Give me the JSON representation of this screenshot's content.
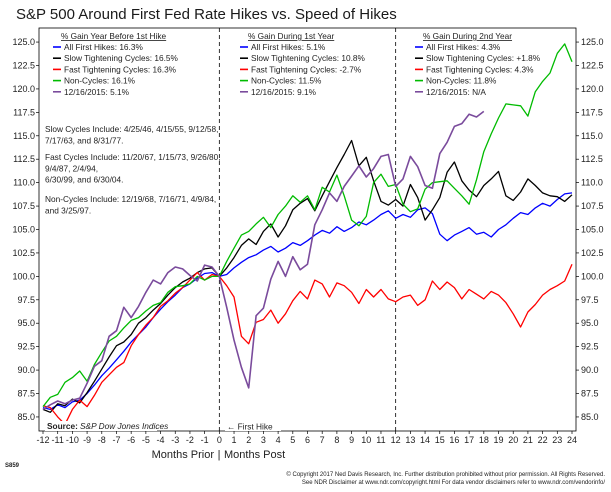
{
  "chart_data": {
    "type": "line",
    "title": "S&P 500 Around First Fed Rate Hikes vs. Speed of Hikes",
    "xlabel_left": "Months Prior",
    "xlabel_sep": "|",
    "xlabel_right": "Months Post",
    "x_ticks": [
      -12,
      -11,
      -10,
      -9,
      -8,
      -7,
      -6,
      -5,
      -4,
      -3,
      -2,
      -1,
      0,
      1,
      2,
      3,
      4,
      5,
      6,
      7,
      8,
      9,
      10,
      11,
      12,
      13,
      14,
      15,
      16,
      17,
      18,
      19,
      20,
      21,
      22,
      23,
      24
    ],
    "y_ticks": [
      "85.0",
      "87.5",
      "90.0",
      "92.5",
      "95.0",
      "97.5",
      "100.0",
      "102.5",
      "105.0",
      "107.5",
      "110.0",
      "112.5",
      "115.0",
      "117.5",
      "120.0",
      "122.5",
      "125.0"
    ],
    "xlim": [
      -12,
      24
    ],
    "ylim": [
      83.5,
      126.5
    ],
    "y_axis_side": "right",
    "first_hike_label": "← First Hike",
    "source_label": "Source:",
    "source_text": "S&P Dow Jones Indices",
    "chart_id": "S859",
    "copyright_line1": "© Copyright 2017 Ned Davis Research, Inc. Further distribution prohibited without prior permission. All Rights Reserved.",
    "copyright_line2": "See NDR Disclaimer at www.ndr.com/copyright.html  For data vendor disclaimers refer to www.ndr.com/vendorinfo/",
    "panels": [
      {
        "title": "% Gain Year Before 1st Hike",
        "entries": [
          {
            "label": "All First Hikes: 16.3%",
            "color": "#0000ff"
          },
          {
            "label": "Slow Tightening Cycles: 16.5%",
            "color": "#000000"
          },
          {
            "label": "Fast Tightening Cycles: 16.3%",
            "color": "#ff0000"
          },
          {
            "label": "Non-Cycles: 16.1%",
            "color": "#00bb00"
          },
          {
            "label": "12/16/2015: 5.1%",
            "color": "#7a4b9c"
          }
        ]
      },
      {
        "title": "% Gain During 1st Year",
        "entries": [
          {
            "label": "All First Hikes: 5.1%",
            "color": "#0000ff"
          },
          {
            "label": "Slow Tightening Cycles: 10.8%",
            "color": "#000000"
          },
          {
            "label": "Fast Tightening Cycles: -2.7%",
            "color": "#ff0000"
          },
          {
            "label": "Non-Cycles: 11.5%",
            "color": "#00bb00"
          },
          {
            "label": "12/16/2015: 9.1%",
            "color": "#7a4b9c"
          }
        ]
      },
      {
        "title": "% Gain During 2nd Year",
        "entries": [
          {
            "label": "All First Hikes: 4.3%",
            "color": "#0000ff"
          },
          {
            "label": "Slow Tightening Cycles: +1.8%",
            "color": "#000000"
          },
          {
            "label": "Fast Tightening Cycles: 4.3%",
            "color": "#ff0000"
          },
          {
            "label": "Non-Cycles: 11.8%",
            "color": "#00bb00"
          },
          {
            "label": "12/16/2015: N/A",
            "color": "#7a4b9c"
          }
        ]
      }
    ],
    "notes": [
      [
        "Slow Cycles Include: 4/25/46, 4/15/55, 9/12/58,",
        "7/17/63, and 8/31/77."
      ],
      [
        "Fast Cycles Include: 11/20/67, 1/15/73, 9/26/80,",
        "9/4/87, 2/4/94,",
        "6/30/99, and 6/30/04."
      ],
      [
        "Non-Cycles Include: 12/19/68, 7/16/71, 4/9/84,",
        "and 3/25/97."
      ]
    ],
    "series": [
      {
        "name": "All First Hikes",
        "color": "#0000ff",
        "width": 1.3,
        "x": [
          -12,
          -11.5,
          -11,
          -10.5,
          -10,
          -9.5,
          -9,
          -8.5,
          -8,
          -7.5,
          -7,
          -6.5,
          -6,
          -5.5,
          -5,
          -4.5,
          -4,
          -3.5,
          -3,
          -2.5,
          -2,
          -1.5,
          -1,
          -0.5,
          0,
          0.5,
          1,
          1.5,
          2,
          2.5,
          3,
          3.5,
          4,
          4.5,
          5,
          5.5,
          6,
          6.5,
          7,
          7.5,
          8,
          8.5,
          9,
          9.5,
          10,
          10.5,
          11,
          11.5,
          12,
          12.5,
          13,
          13.5,
          14,
          14.5,
          15,
          15.5,
          16,
          16.5,
          17,
          17.5,
          18,
          18.5,
          19,
          19.5,
          20,
          20.5,
          21,
          21.5,
          22,
          22.5,
          23,
          23.5,
          24
        ],
        "y": [
          86.0,
          85.8,
          86.3,
          86.0,
          86.6,
          86.8,
          87.5,
          88.4,
          89.4,
          90.2,
          91.1,
          92.0,
          93.0,
          93.8,
          94.6,
          95.6,
          96.5,
          97.3,
          98.0,
          98.8,
          99.2,
          99.8,
          100.3,
          100.4,
          100.0,
          100.2,
          100.9,
          101.5,
          102.0,
          102.3,
          102.8,
          103.2,
          102.6,
          103.0,
          103.6,
          103.3,
          103.8,
          104.4,
          104.9,
          104.6,
          105.3,
          104.8,
          105.2,
          105.8,
          105.5,
          106.0,
          106.6,
          107.0,
          106.2,
          106.6,
          106.3,
          107.1,
          107.3,
          106.7,
          104.5,
          103.8,
          104.4,
          104.8,
          105.2,
          104.5,
          104.7,
          104.2,
          105.0,
          105.5,
          106.2,
          106.8,
          106.6,
          107.3,
          107.8,
          107.5,
          108.2,
          108.8,
          108.9
        ]
      },
      {
        "name": "Slow Tightening Cycles",
        "color": "#000000",
        "width": 1.3,
        "x": [
          -12,
          -11.5,
          -11,
          -10.5,
          -10,
          -9.5,
          -9,
          -8.5,
          -8,
          -7.5,
          -7,
          -6.5,
          -6,
          -5.5,
          -5,
          -4.5,
          -4,
          -3.5,
          -3,
          -2.5,
          -2,
          -1.5,
          -1,
          -0.5,
          0,
          0.5,
          1,
          1.5,
          2,
          2.5,
          3,
          3.5,
          4,
          4.5,
          5,
          5.5,
          6,
          6.5,
          7,
          7.5,
          8,
          8.5,
          9,
          9.5,
          10,
          10.5,
          11,
          11.5,
          12,
          12.5,
          13,
          13.5,
          14,
          14.5,
          15,
          15.5,
          16,
          16.5,
          17,
          17.5,
          18,
          18.5,
          19,
          19.5,
          20,
          20.5,
          21,
          21.5,
          22,
          22.5,
          23,
          23.5,
          24
        ],
        "y": [
          85.8,
          85.5,
          86.4,
          86.2,
          86.9,
          86.5,
          87.6,
          88.8,
          90.1,
          91.4,
          92.6,
          93.0,
          93.8,
          95.0,
          95.6,
          96.4,
          97.1,
          98.0,
          98.8,
          99.4,
          99.8,
          100.4,
          100.8,
          100.9,
          100.0,
          100.9,
          102.0,
          103.3,
          104.0,
          103.4,
          104.8,
          105.6,
          104.2,
          105.4,
          107.1,
          107.8,
          108.3,
          107.0,
          108.6,
          110.1,
          111.6,
          113.0,
          114.5,
          111.8,
          112.7,
          110.2,
          108.0,
          107.6,
          108.2,
          107.5,
          109.8,
          108.4,
          106.0,
          107.1,
          108.4,
          111.1,
          112.2,
          110.2,
          109.2,
          108.5,
          109.7,
          110.4,
          111.2,
          108.6,
          108.1,
          109.0,
          110.4,
          109.7,
          108.9,
          108.6,
          108.5,
          108.0,
          108.7
        ]
      },
      {
        "name": "Fast Tightening Cycles",
        "color": "#ff0000",
        "width": 1.3,
        "x": [
          -12,
          -11.5,
          -11,
          -10.5,
          -10,
          -9.5,
          -9,
          -8.5,
          -8,
          -7.5,
          -7,
          -6.5,
          -6,
          -5.5,
          -5,
          -4.5,
          -4,
          -3.5,
          -3,
          -2.5,
          -2,
          -1.5,
          -1,
          -0.5,
          0,
          0.5,
          1,
          1.5,
          2,
          2.5,
          3,
          3.5,
          4,
          4.5,
          5,
          5.5,
          6,
          6.5,
          7,
          7.5,
          8,
          8.5,
          9,
          9.5,
          10,
          10.5,
          11,
          11.5,
          12,
          12.5,
          13,
          13.5,
          14,
          14.5,
          15,
          15.5,
          16,
          16.5,
          17,
          17.5,
          18,
          18.5,
          19,
          19.5,
          20,
          20.5,
          21,
          21.5,
          22,
          22.5,
          23,
          23.5,
          24
        ],
        "y": [
          86.2,
          86.0,
          85.0,
          84.2,
          85.8,
          86.8,
          86.1,
          87.3,
          88.7,
          89.5,
          90.3,
          90.8,
          92.6,
          93.8,
          94.8,
          95.6,
          96.8,
          97.4,
          98.2,
          98.8,
          99.6,
          100.4,
          99.6,
          100.2,
          100.0,
          99.0,
          97.8,
          93.6,
          92.8,
          95.1,
          95.4,
          96.4,
          95.0,
          96.0,
          97.4,
          98.4,
          97.6,
          99.6,
          99.2,
          97.8,
          99.3,
          99.0,
          98.3,
          97.1,
          98.6,
          97.8,
          98.6,
          97.6,
          97.3,
          97.8,
          98.0,
          96.9,
          97.5,
          99.5,
          98.6,
          99.4,
          98.8,
          97.6,
          98.6,
          98.1,
          97.6,
          98.4,
          98.0,
          97.2,
          96.0,
          94.6,
          96.2,
          97.0,
          98.0,
          98.6,
          99.0,
          99.5,
          101.3
        ]
      },
      {
        "name": "Non-Cycles",
        "color": "#00bb00",
        "width": 1.3,
        "x": [
          -12,
          -11.5,
          -11,
          -10.5,
          -10,
          -9.5,
          -9,
          -8.5,
          -8,
          -7.5,
          -7,
          -6.5,
          -6,
          -5.5,
          -5,
          -4.5,
          -4,
          -3.5,
          -3,
          -2.5,
          -2,
          -1.5,
          -1,
          -0.5,
          0,
          0.5,
          1,
          1.5,
          2,
          2.5,
          3,
          3.5,
          4,
          4.5,
          5,
          5.5,
          6,
          6.5,
          7,
          7.5,
          8,
          8.5,
          9,
          9.5,
          10,
          10.5,
          11,
          11.5,
          12,
          12.5,
          13,
          13.5,
          14,
          14.5,
          15,
          15.5,
          16,
          16.5,
          17,
          17.5,
          18,
          18.5,
          19,
          19.5,
          20,
          20.5,
          21,
          21.5,
          22,
          22.5,
          23,
          23.5,
          24
        ],
        "y": [
          86.1,
          87.1,
          87.4,
          88.7,
          89.2,
          89.9,
          88.8,
          90.6,
          91.9,
          93.1,
          93.6,
          94.5,
          95.3,
          95.6,
          96.3,
          96.9,
          97.2,
          98.3,
          98.9,
          99.0,
          99.2,
          100.0,
          99.6,
          100.0,
          100.0,
          101.6,
          103.0,
          104.4,
          104.8,
          105.6,
          106.3,
          105.2,
          106.6,
          107.5,
          108.6,
          107.9,
          108.6,
          107.1,
          109.5,
          109.0,
          110.8,
          108.6,
          106.0,
          105.4,
          106.4,
          110.0,
          110.9,
          109.6,
          109.8,
          107.7,
          106.9,
          107.2,
          109.3,
          110.0,
          110.1,
          110.2,
          109.4,
          108.6,
          107.7,
          110.3,
          113.3,
          115.2,
          116.9,
          118.4,
          118.3,
          118.2,
          117.1,
          119.7,
          120.8,
          121.7,
          123.8,
          124.8,
          122.9
        ]
      },
      {
        "name": "12/16/2015",
        "color": "#7a4b9c",
        "width": 1.6,
        "x": [
          -12,
          -11.5,
          -11,
          -10.5,
          -10,
          -9.5,
          -9,
          -8.5,
          -8,
          -7.5,
          -7,
          -6.5,
          -6,
          -5.5,
          -5,
          -4.5,
          -4,
          -3.5,
          -3,
          -2.5,
          -2,
          -1.5,
          -1,
          -0.5,
          0,
          0.5,
          1,
          1.5,
          2,
          2.5,
          3,
          3.5,
          4,
          4.5,
          5,
          5.5,
          6,
          6.5,
          7,
          7.5,
          8,
          8.5,
          9,
          9.5,
          10,
          10.5,
          11,
          11.5,
          12,
          12.5,
          13,
          13.5,
          14,
          14.5,
          15,
          15.5,
          16,
          16.5,
          17,
          17.5,
          18
        ],
        "y": [
          85.8,
          86.3,
          86.7,
          86.4,
          86.8,
          87.0,
          88.6,
          90.4,
          91.0,
          93.6,
          94.2,
          96.7,
          95.6,
          96.8,
          98.3,
          99.6,
          99.2,
          100.4,
          101.0,
          100.8,
          100.1,
          99.5,
          101.2,
          101.0,
          100.0,
          96.7,
          93.2,
          90.3,
          88.1,
          95.8,
          96.6,
          99.7,
          101.6,
          100.0,
          102.1,
          100.7,
          101.3,
          105.5,
          107.1,
          108.9,
          108.0,
          109.6,
          110.7,
          111.8,
          110.6,
          111.5,
          112.8,
          113.0,
          109.6,
          110.4,
          112.8,
          111.7,
          109.7,
          109.4,
          113.1,
          114.3,
          116.0,
          116.3,
          117.3,
          117.0,
          117.6
        ]
      }
    ]
  }
}
